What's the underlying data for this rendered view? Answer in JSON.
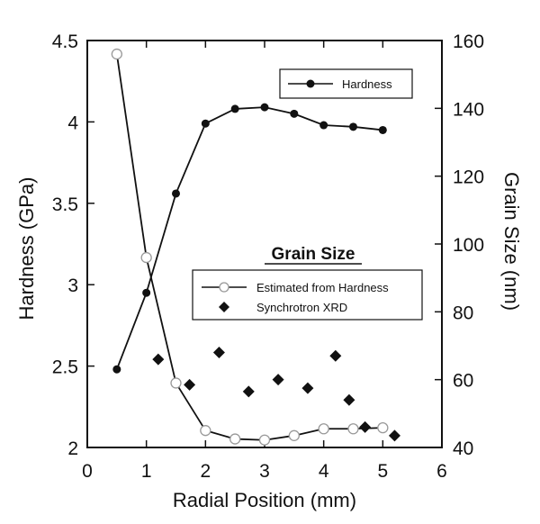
{
  "chart_data": {
    "type": "scatter",
    "xlabel": "Radial Position (mm)",
    "ylabel": "Hardness (GPa)",
    "y2label": "Grain Size (nm)",
    "xlim": [
      0,
      6
    ],
    "ylim": [
      2,
      4.5
    ],
    "y2lim": [
      40,
      160
    ],
    "xticks": [
      "0",
      "1",
      "2",
      "3",
      "4",
      "5",
      "6"
    ],
    "yticks": [
      "2",
      "2.5",
      "3",
      "3.5",
      "4",
      "4.5"
    ],
    "y2ticks": [
      "40",
      "60",
      "80",
      "100",
      "120",
      "140",
      "160"
    ],
    "grid": false,
    "grain_size_heading": "Grain Size",
    "legend_hardness": {
      "placement": "top-right",
      "entries": [
        "Hardness"
      ]
    },
    "legend_grain": {
      "placement": "center-right",
      "entries": [
        "Estimated from Hardness",
        "Synchrotron XRD"
      ]
    },
    "series": [
      {
        "name": "Hardness",
        "axis": "left",
        "style": "line-filled-circle",
        "x": [
          0.5,
          1.0,
          1.5,
          2.0,
          2.5,
          3.0,
          3.5,
          4.0,
          4.5,
          5.0
        ],
        "y": [
          2.48,
          2.95,
          3.56,
          3.99,
          4.08,
          4.09,
          4.05,
          3.98,
          3.97,
          3.95
        ]
      },
      {
        "name": "Estimated from Hardness",
        "axis": "right",
        "style": "line-open-circle",
        "x": [
          0.5,
          1.0,
          1.5,
          2.0,
          2.5,
          3.0,
          3.5,
          4.0,
          4.5,
          5.0
        ],
        "y": [
          156,
          96,
          59,
          45,
          42.5,
          42.2,
          43.5,
          45.5,
          45.5,
          45.8
        ]
      },
      {
        "name": "Synchrotron XRD",
        "axis": "right",
        "style": "diamond",
        "x": [
          1.2,
          1.73,
          2.23,
          2.73,
          3.23,
          3.73,
          4.2,
          4.43,
          4.7,
          5.2
        ],
        "y": [
          66,
          58.5,
          68,
          56.5,
          60,
          57.5,
          67,
          54,
          46,
          43.5
        ]
      }
    ]
  }
}
